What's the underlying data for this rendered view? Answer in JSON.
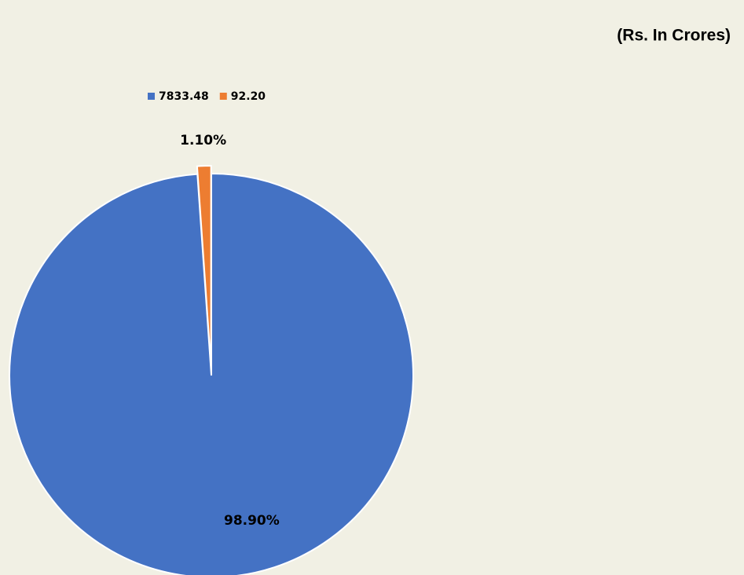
{
  "chart_data": {
    "type": "pie",
    "subtitle": "(Rs. In Crores)",
    "categories": [
      "7833.48",
      "92.20"
    ],
    "values": [
      98.9,
      1.1
    ],
    "value_labels": [
      "98.90%",
      "1.10%"
    ],
    "colors": [
      "#4472c4",
      "#ed7d31"
    ],
    "legend": "top"
  }
}
